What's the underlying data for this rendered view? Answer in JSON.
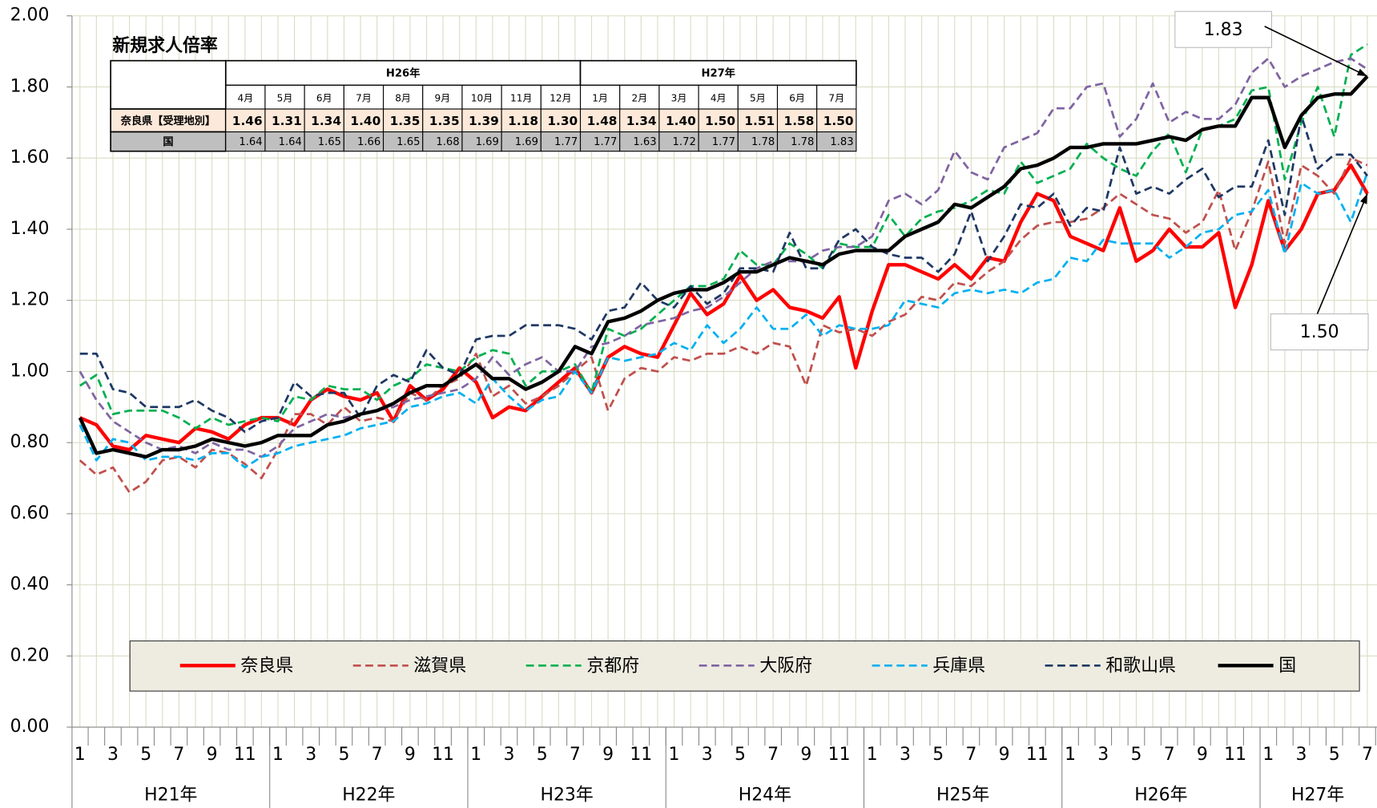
{
  "chart_data": {
    "type": "line",
    "categories": [
      "1",
      null,
      "3",
      null,
      "5",
      null,
      "7",
      null,
      "9",
      null,
      "11",
      null,
      "1",
      null,
      "3",
      null,
      "5",
      null,
      "7",
      null,
      "9",
      null,
      "11",
      null,
      "1",
      null,
      "3",
      null,
      "5",
      null,
      "7",
      null,
      "9",
      null,
      "11",
      null,
      "1",
      null,
      "3",
      null,
      "5",
      null,
      "7",
      null,
      "9",
      null,
      "11",
      null,
      "1",
      null,
      "3",
      null,
      "5",
      null,
      "7",
      null,
      "9",
      null,
      "11",
      null,
      "1",
      null,
      "3",
      null,
      "5",
      null,
      "7",
      null,
      "9",
      null,
      "11",
      null,
      "1",
      null,
      "3",
      null,
      "5",
      null,
      "7"
    ],
    "years": [
      "H21年",
      "H22年",
      "H23年",
      "H24年",
      "H25年",
      "H26年",
      "H27年"
    ],
    "ylim": [
      0,
      2
    ],
    "yticks": [
      {
        "value": 0,
        "label": "0.00"
      },
      {
        "value": 0.2,
        "label": "0.20"
      },
      {
        "value": 0.4,
        "label": "0.40"
      },
      {
        "value": 0.6,
        "label": "0.60"
      },
      {
        "value": 0.8,
        "label": "0.80"
      },
      {
        "value": 1,
        "label": "1.00"
      },
      {
        "value": 1.2,
        "label": "1.20"
      },
      {
        "value": 1.4,
        "label": "1.40"
      },
      {
        "value": 1.6,
        "label": "1.60"
      },
      {
        "value": 1.8,
        "label": "1.80"
      },
      {
        "value": 2,
        "label": "2.00"
      }
    ],
    "grid": true,
    "series": [
      {
        "name": "奈良県",
        "color": "#ff0000",
        "dashed": false,
        "values": [
          0.87,
          0.85,
          0.79,
          0.78,
          0.82,
          0.81,
          0.8,
          0.84,
          0.83,
          0.81,
          0.85,
          0.87,
          0.87,
          0.85,
          0.92,
          0.95,
          0.93,
          0.92,
          0.94,
          0.86,
          0.96,
          0.92,
          0.95,
          1.01,
          0.97,
          0.87,
          0.9,
          0.89,
          0.93,
          0.97,
          1.01,
          0.94,
          1.04,
          1.07,
          1.05,
          1.04,
          1.13,
          1.22,
          1.16,
          1.19,
          1.27,
          1.2,
          1.23,
          1.18,
          1.17,
          1.15,
          1.21,
          1.01,
          1.17,
          1.3,
          1.3,
          1.28,
          1.26,
          1.3,
          1.26,
          1.32,
          1.31,
          1.42,
          1.5,
          1.48,
          1.38,
          1.36,
          1.34,
          1.46,
          1.31,
          1.34,
          1.4,
          1.35,
          1.35,
          1.39,
          1.18,
          1.3,
          1.48,
          1.34,
          1.4,
          1.5,
          1.51,
          1.58,
          1.5
        ]
      },
      {
        "name": "滋賀県",
        "color": "#c0504d",
        "dashed": true,
        "values": [
          0.75,
          0.71,
          0.73,
          0.66,
          0.69,
          0.75,
          0.76,
          0.73,
          0.78,
          0.77,
          0.74,
          0.7,
          0.78,
          0.88,
          0.88,
          0.85,
          0.9,
          0.86,
          0.87,
          0.86,
          0.94,
          0.92,
          0.96,
          0.98,
          1.05,
          0.93,
          0.96,
          0.91,
          0.93,
          0.96,
          1.0,
          1.04,
          0.89,
          0.98,
          1.01,
          1.0,
          1.04,
          1.03,
          1.05,
          1.05,
          1.07,
          1.05,
          1.08,
          1.07,
          0.96,
          1.13,
          1.11,
          1.12,
          1.1,
          1.14,
          1.16,
          1.21,
          1.2,
          1.25,
          1.24,
          1.28,
          1.31,
          1.37,
          1.41,
          1.42,
          1.42,
          1.43,
          1.46,
          1.5,
          1.47,
          1.44,
          1.43,
          1.39,
          1.42,
          1.51,
          1.34,
          1.45,
          1.59,
          1.36,
          1.58,
          1.55,
          1.5,
          1.6,
          1.58
        ]
      },
      {
        "name": "京都府",
        "color": "#00b050",
        "dashed": true,
        "values": [
          0.96,
          0.99,
          0.88,
          0.89,
          0.89,
          0.89,
          0.87,
          0.84,
          0.87,
          0.85,
          0.86,
          0.87,
          0.86,
          0.93,
          0.92,
          0.96,
          0.95,
          0.95,
          0.92,
          0.96,
          0.98,
          1.02,
          1.01,
          1.0,
          1.04,
          1.06,
          1.05,
          0.96,
          1.0,
          1.0,
          1.02,
          0.94,
          1.12,
          1.1,
          1.12,
          1.16,
          1.2,
          1.24,
          1.24,
          1.26,
          1.34,
          1.3,
          1.3,
          1.36,
          1.33,
          1.29,
          1.36,
          1.35,
          1.35,
          1.44,
          1.38,
          1.43,
          1.45,
          1.46,
          1.48,
          1.51,
          1.5,
          1.59,
          1.53,
          1.55,
          1.57,
          1.64,
          1.6,
          1.57,
          1.55,
          1.62,
          1.67,
          1.56,
          1.68,
          1.69,
          1.71,
          1.79,
          1.8,
          1.54,
          1.7,
          1.8,
          1.66,
          1.89,
          1.92
        ]
      },
      {
        "name": "大阪府",
        "color": "#8064a2",
        "dashed": true,
        "values": [
          1.0,
          0.92,
          0.86,
          0.83,
          0.8,
          0.78,
          0.79,
          0.77,
          0.8,
          0.78,
          0.78,
          0.76,
          0.79,
          0.84,
          0.86,
          0.88,
          0.87,
          0.88,
          0.89,
          0.9,
          0.92,
          0.93,
          0.94,
          0.95,
          0.98,
          1.04,
          0.99,
          1.02,
          1.04,
          1.0,
          1.0,
          1.07,
          1.08,
          1.1,
          1.13,
          1.14,
          1.15,
          1.17,
          1.18,
          1.21,
          1.25,
          1.29,
          1.31,
          1.31,
          1.31,
          1.34,
          1.35,
          1.35,
          1.38,
          1.48,
          1.5,
          1.47,
          1.51,
          1.62,
          1.56,
          1.54,
          1.63,
          1.65,
          1.67,
          1.74,
          1.74,
          1.8,
          1.81,
          1.66,
          1.71,
          1.81,
          1.7,
          1.73,
          1.71,
          1.71,
          1.75,
          1.84,
          1.88,
          1.8,
          1.83,
          1.85,
          1.87,
          1.88,
          1.85
        ]
      },
      {
        "name": "兵庫県",
        "color": "#00b0f0",
        "dashed": true,
        "values": [
          0.85,
          0.75,
          0.81,
          0.8,
          0.75,
          0.76,
          0.76,
          0.75,
          0.77,
          0.77,
          0.73,
          0.76,
          0.77,
          0.79,
          0.8,
          0.81,
          0.82,
          0.84,
          0.85,
          0.86,
          0.9,
          0.91,
          0.93,
          0.94,
          0.91,
          0.98,
          0.93,
          0.89,
          0.92,
          0.93,
          1.0,
          0.94,
          1.04,
          1.03,
          1.04,
          1.05,
          1.08,
          1.06,
          1.13,
          1.08,
          1.12,
          1.18,
          1.12,
          1.12,
          1.16,
          1.1,
          1.13,
          1.12,
          1.12,
          1.13,
          1.2,
          1.19,
          1.18,
          1.22,
          1.23,
          1.22,
          1.23,
          1.22,
          1.25,
          1.26,
          1.32,
          1.31,
          1.37,
          1.36,
          1.36,
          1.36,
          1.32,
          1.35,
          1.39,
          1.4,
          1.44,
          1.45,
          1.51,
          1.33,
          1.53,
          1.5,
          1.51,
          1.42,
          1.56
        ]
      },
      {
        "name": "和歌山県",
        "color": "#1f3864",
        "dashed": true,
        "values": [
          1.05,
          1.05,
          0.95,
          0.94,
          0.9,
          0.9,
          0.9,
          0.92,
          0.89,
          0.87,
          0.83,
          0.86,
          0.87,
          0.97,
          0.93,
          0.94,
          0.94,
          0.87,
          0.96,
          0.99,
          0.97,
          1.06,
          1.01,
          0.99,
          1.09,
          1.1,
          1.1,
          1.13,
          1.13,
          1.13,
          1.12,
          1.09,
          1.17,
          1.18,
          1.25,
          1.2,
          1.18,
          1.24,
          1.19,
          1.22,
          1.29,
          1.29,
          1.28,
          1.39,
          1.29,
          1.29,
          1.37,
          1.4,
          1.35,
          1.33,
          1.32,
          1.32,
          1.28,
          1.33,
          1.45,
          1.31,
          1.38,
          1.47,
          1.46,
          1.5,
          1.41,
          1.46,
          1.45,
          1.63,
          1.5,
          1.52,
          1.5,
          1.54,
          1.57,
          1.49,
          1.52,
          1.52,
          1.65,
          1.44,
          1.72,
          1.57,
          1.61,
          1.61,
          1.55
        ]
      },
      {
        "name": "国",
        "color": "#000000",
        "dashed": false,
        "values": [
          0.87,
          0.77,
          0.78,
          0.77,
          0.76,
          0.78,
          0.78,
          0.79,
          0.81,
          0.8,
          0.79,
          0.8,
          0.82,
          0.82,
          0.82,
          0.85,
          0.86,
          0.88,
          0.89,
          0.91,
          0.94,
          0.96,
          0.96,
          0.99,
          1.02,
          0.98,
          0.98,
          0.95,
          0.97,
          1.0,
          1.07,
          1.05,
          1.14,
          1.15,
          1.17,
          1.2,
          1.22,
          1.23,
          1.23,
          1.25,
          1.28,
          1.28,
          1.3,
          1.32,
          1.31,
          1.3,
          1.33,
          1.34,
          1.34,
          1.34,
          1.38,
          1.4,
          1.42,
          1.47,
          1.46,
          1.49,
          1.52,
          1.57,
          1.58,
          1.6,
          1.63,
          1.63,
          1.64,
          1.64,
          1.64,
          1.65,
          1.66,
          1.65,
          1.68,
          1.69,
          1.69,
          1.77,
          1.77,
          1.63,
          1.72,
          1.77,
          1.78,
          1.78,
          1.83
        ]
      }
    ],
    "annotations": [
      {
        "text": "1.83",
        "series": 6,
        "index": 78
      },
      {
        "text": "1.50",
        "series": 0,
        "index": 78
      }
    ]
  },
  "table": {
    "title": "新規求人倍率",
    "groups": [
      {
        "label": "H26年",
        "months": [
          "4月",
          "5月",
          "6月",
          "7月",
          "8月",
          "9月",
          "10月",
          "11月",
          "12月"
        ]
      },
      {
        "label": "H27年",
        "months": [
          "1月",
          "2月",
          "3月",
          "4月",
          "5月",
          "6月",
          "7月"
        ]
      }
    ],
    "rows": [
      {
        "label": "奈良県【受理地別】",
        "values": [
          "1.46",
          "1.31",
          "1.34",
          "1.40",
          "1.35",
          "1.35",
          "1.39",
          "1.18",
          "1.30",
          "1.48",
          "1.34",
          "1.40",
          "1.50",
          "1.51",
          "1.58",
          "1.50"
        ]
      },
      {
        "label": "国",
        "values": [
          "1.64",
          "1.64",
          "1.65",
          "1.66",
          "1.65",
          "1.68",
          "1.69",
          "1.69",
          "1.77",
          "1.77",
          "1.63",
          "1.72",
          "1.77",
          "1.78",
          "1.78",
          "1.83"
        ]
      }
    ]
  }
}
